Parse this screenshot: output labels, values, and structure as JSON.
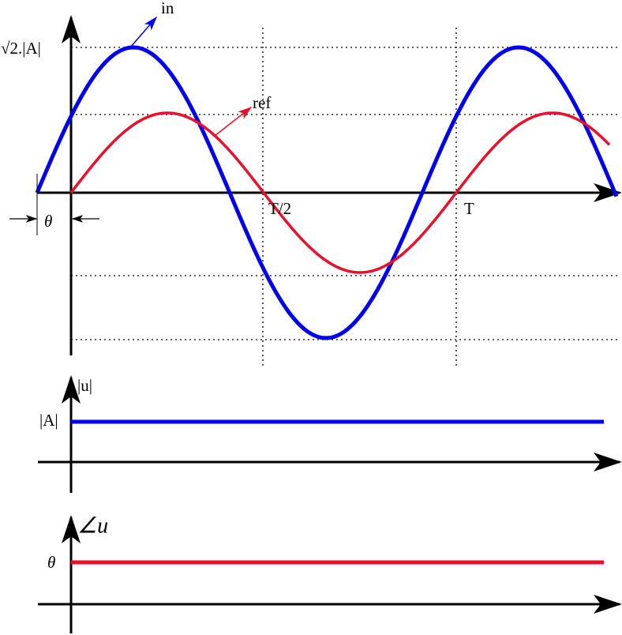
{
  "signal_plot": {
    "in_label": "in",
    "ref_label": "ref",
    "peak_label": "√2.|A|",
    "half_period_label": "T/2",
    "period_label": "T",
    "phase_label": "θ"
  },
  "magnitude_plot": {
    "axis_label": "|u|",
    "level_label": "|A|"
  },
  "angle_plot": {
    "axis_label": "∠u",
    "level_label": "θ"
  }
}
